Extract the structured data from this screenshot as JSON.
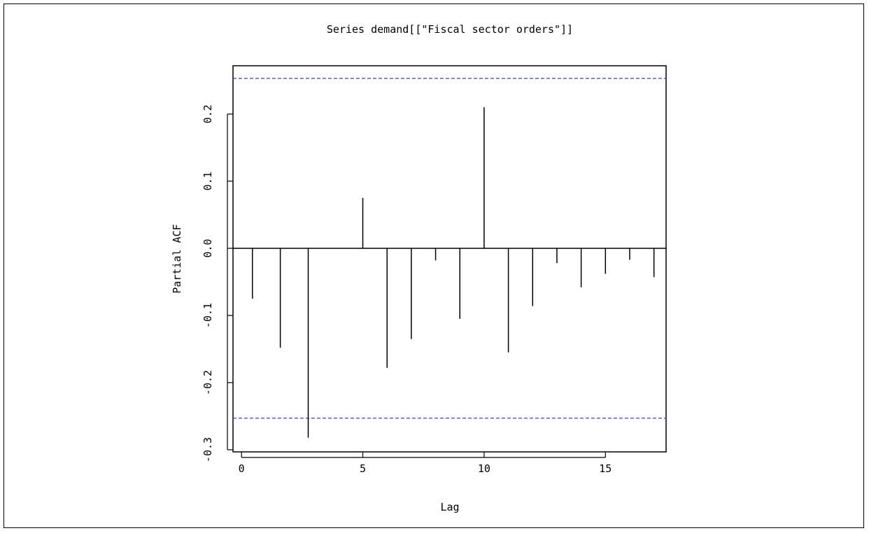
{
  "chart_data": {
    "type": "bar",
    "title": "Series  demand[[\"Fiscal sector orders\"]]",
    "xlabel": "Lag",
    "ylabel": "Partial ACF",
    "xlim": [
      -0.35,
      17.5
    ],
    "ylim": [
      -0.3,
      0.25
    ],
    "x_ticks": [
      0,
      5,
      10,
      15
    ],
    "x_tick_labels": [
      "0",
      "5",
      "10",
      "15"
    ],
    "y_ticks": [
      -0.3,
      -0.2,
      -0.1,
      0.0,
      0.1,
      0.2
    ],
    "y_tick_labels": [
      "-0.3",
      "-0.2",
      "-0.1",
      "0.0",
      "0.1",
      "0.2"
    ],
    "confidence_bound": 0.253,
    "bound_color": "#3b46b8",
    "line_color": "#000000",
    "lags": [
      0.45,
      1.6,
      2.75,
      5.0,
      6.0,
      7.0,
      8.0,
      9.0,
      10.0,
      11.0,
      12.0,
      13.0,
      14.0,
      15.0,
      16.0,
      17.0
    ],
    "values": [
      -0.075,
      -0.148,
      -0.282,
      0.075,
      -0.178,
      -0.135,
      -0.018,
      -0.105,
      0.21,
      -0.155,
      -0.086,
      -0.022,
      -0.058,
      -0.038,
      -0.017,
      -0.043
    ],
    "grid": false
  }
}
